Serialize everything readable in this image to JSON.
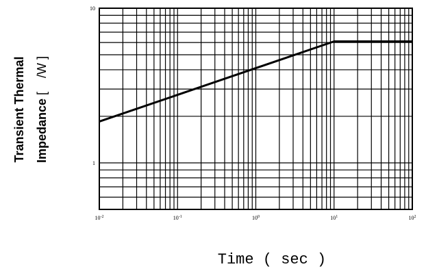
{
  "chart_data": {
    "type": "line",
    "title": "",
    "xlabel": "Time ( sec )",
    "ylabel_line1": "Transient Thermal",
    "ylabel_line2_bold": "Impedance",
    "ylabel_line2_rest": " [    /W ]",
    "x_scale": "log",
    "y_scale": "log",
    "xlim": [
      0.01,
      100
    ],
    "ylim": [
      0.5,
      10
    ],
    "x_ticks": [
      {
        "value": 0.01,
        "base": "10",
        "exp": "-2"
      },
      {
        "value": 0.1,
        "base": "10",
        "exp": "-1"
      },
      {
        "value": 1,
        "base": "10",
        "exp": "0"
      },
      {
        "value": 10,
        "base": "10",
        "exp": "1"
      },
      {
        "value": 100,
        "base": "10",
        "exp": "2"
      }
    ],
    "y_ticks": [
      {
        "value": 1,
        "label": "1"
      },
      {
        "value": 10,
        "label": "10"
      }
    ],
    "grid": true,
    "series": [
      {
        "x": [
          0.01,
          10,
          100
        ],
        "y": [
          1.85,
          6.1,
          6.1
        ]
      }
    ]
  }
}
